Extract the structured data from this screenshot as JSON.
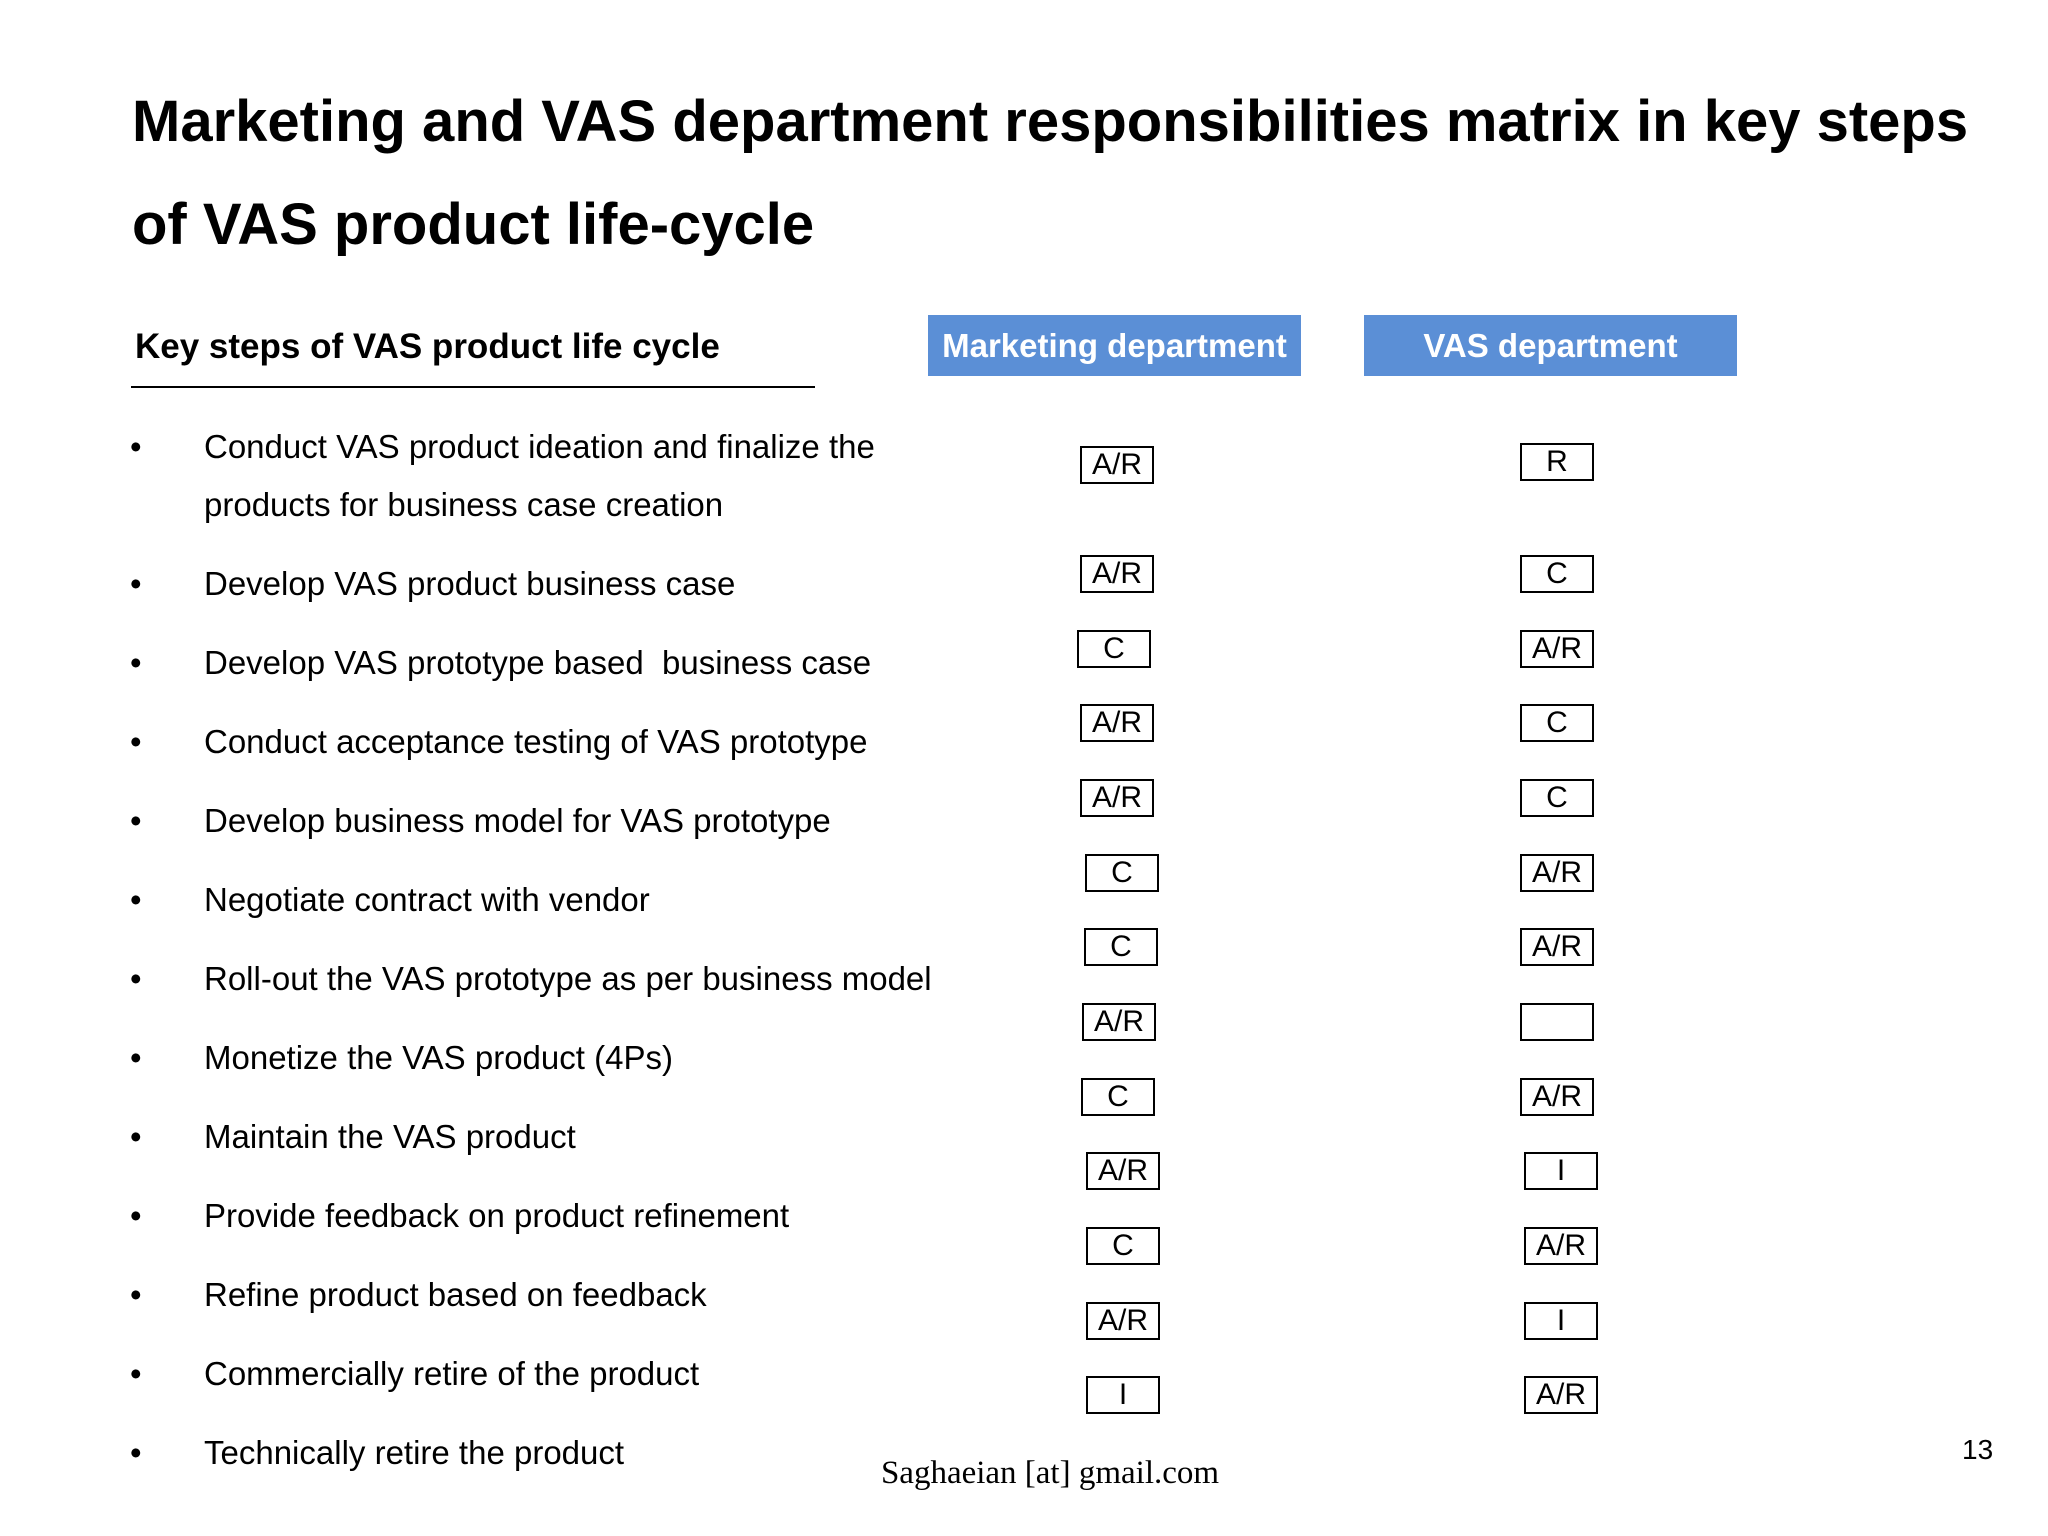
{
  "title": "Marketing and VAS department responsibilities matrix in key steps of VAS product life-cycle",
  "steps_header": "Key steps of VAS product life cycle",
  "columns": {
    "marketing": "Marketing department",
    "vas": "VAS department"
  },
  "bullet": "•",
  "steps": [
    "Conduct VAS product ideation and finalize the products for business case creation",
    "Develop VAS product business case",
    "Develop VAS prototype based  business case",
    "Conduct acceptance testing of VAS prototype",
    "Develop business model for VAS prototype",
    "Negotiate contract with vendor",
    "Roll-out the VAS prototype as per business model",
    "Monetize the VAS product (4Ps)",
    "Maintain the VAS product",
    "Provide feedback on product refinement",
    "Refine product based on feedback",
    "Commercially retire of the product",
    "Technically retire the product"
  ],
  "marketing_raci": [
    "A/R",
    "A/R",
    "C",
    "A/R",
    "A/R",
    "C",
    "C",
    "A/R",
    "C",
    "A/R",
    "C",
    "A/R",
    "I"
  ],
  "vas_raci": [
    "R",
    "C",
    "A/R",
    "C",
    "C",
    "A/R",
    "A/R",
    "",
    "A/R",
    "I",
    "A/R",
    "I",
    "A/R"
  ],
  "footer": {
    "email": "Saghaeian [at] gmail.com",
    "page_number": "13"
  }
}
